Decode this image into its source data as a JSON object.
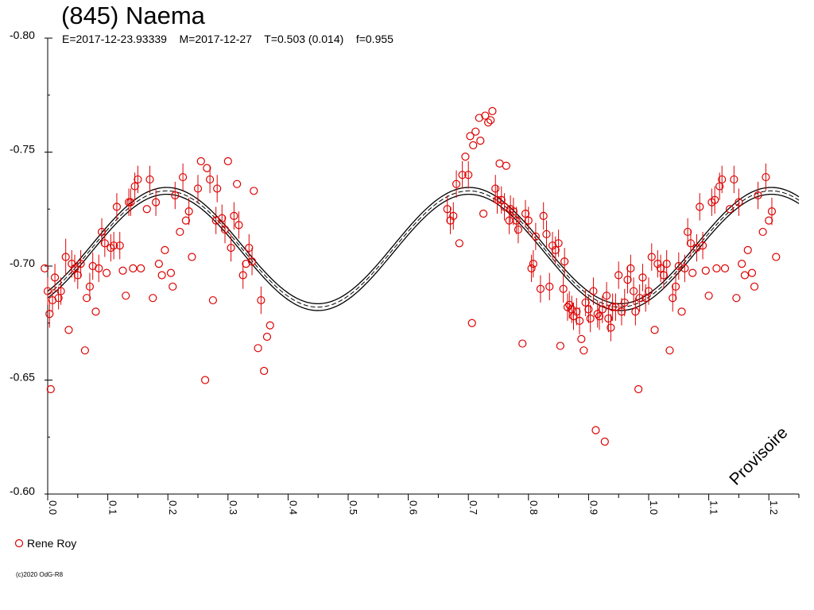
{
  "header": {
    "title": "(845) Naema",
    "params": "E=2017-12-23.93339    M=2017-12-27    T=0.503 (0.014)    f=0.955"
  },
  "footer": {
    "copyright": "(c)2020 OdG-R8"
  },
  "colors": {
    "data": "#dd0000",
    "fit": "#000000",
    "axis": "#000000"
  },
  "chart_data": {
    "type": "scatter",
    "title": "(845) Naema",
    "xlabel": "",
    "ylabel": "",
    "xlim": [
      0.0,
      1.25
    ],
    "ylim": [
      -0.8,
      -0.6
    ],
    "y_inverted": true,
    "x_ticks": [
      "0.0",
      "0.1",
      "0.2",
      "0.3",
      "0.4",
      "0.5",
      "0.6",
      "0.7",
      "0.8",
      "0.9",
      "1.0",
      "1.1",
      "1.2"
    ],
    "y_ticks": [
      "-0.80",
      "-0.75",
      "-0.70",
      "-0.65",
      "-0.60"
    ],
    "watermark": "Provisoire",
    "legend": {
      "position": "bottom-left",
      "entries": [
        {
          "name": "Rene Roy",
          "marker": "circle",
          "color": "#dd0000"
        }
      ]
    },
    "fit": {
      "period_phase": 0.503,
      "mean": -0.7075,
      "amplitude": 0.0255,
      "phase_offset": 0.198,
      "band": 0.0015
    },
    "series": [
      {
        "name": "Rene Roy",
        "points": [
          [
            -0.005,
            -0.699,
            0
          ],
          [
            0.0,
            -0.689,
            0.006
          ],
          [
            0.003,
            -0.679,
            0.006
          ],
          [
            0.005,
            -0.646,
            0
          ],
          [
            0.008,
            -0.685,
            0.005
          ],
          [
            0.012,
            -0.695,
            0.006
          ],
          [
            0.018,
            -0.686,
            0.005
          ],
          [
            0.022,
            -0.689,
            0.006
          ],
          [
            0.03,
            -0.704,
            0.008
          ],
          [
            0.035,
            -0.672,
            0
          ],
          [
            0.04,
            -0.701,
            0.006
          ],
          [
            0.045,
            -0.699,
            0.006
          ],
          [
            0.05,
            -0.696,
            0.006
          ],
          [
            0.055,
            -0.701,
            0.006
          ],
          [
            0.062,
            -0.663,
            0
          ],
          [
            0.065,
            -0.686,
            0
          ],
          [
            0.07,
            -0.691,
            0.006
          ],
          [
            0.075,
            -0.7,
            0.006
          ],
          [
            0.08,
            -0.68,
            0
          ],
          [
            0.085,
            -0.699,
            0.006
          ],
          [
            0.09,
            -0.715,
            0.006
          ],
          [
            0.095,
            -0.71,
            0.006
          ],
          [
            0.098,
            -0.697,
            0
          ],
          [
            0.105,
            -0.708,
            0.006
          ],
          [
            0.11,
            -0.709,
            0.006
          ],
          [
            0.115,
            -0.726,
            0.006
          ],
          [
            0.12,
            -0.709,
            0.006
          ],
          [
            0.125,
            -0.698,
            0
          ],
          [
            0.13,
            -0.687,
            0
          ],
          [
            0.135,
            -0.728,
            0.006
          ],
          [
            0.138,
            -0.728,
            0.006
          ],
          [
            0.142,
            -0.699,
            0
          ],
          [
            0.145,
            -0.735,
            0.006
          ],
          [
            0.15,
            -0.738,
            0.006
          ],
          [
            0.155,
            -0.699,
            0
          ],
          [
            0.165,
            -0.725,
            0
          ],
          [
            0.17,
            -0.738,
            0.006
          ],
          [
            0.175,
            -0.686,
            0
          ],
          [
            0.18,
            -0.728,
            0.006
          ],
          [
            0.185,
            -0.701,
            0
          ],
          [
            0.19,
            -0.696,
            0
          ],
          [
            0.195,
            -0.707,
            0
          ],
          [
            0.205,
            -0.697,
            0
          ],
          [
            0.208,
            -0.691,
            0
          ],
          [
            0.212,
            -0.731,
            0.006
          ],
          [
            0.22,
            -0.715,
            0
          ],
          [
            0.225,
            -0.739,
            0.006
          ],
          [
            0.23,
            -0.72,
            0
          ],
          [
            0.235,
            -0.724,
            0.006
          ],
          [
            0.24,
            -0.704,
            0
          ],
          [
            0.25,
            -0.734,
            0.006
          ],
          [
            0.255,
            -0.746,
            0
          ],
          [
            0.262,
            -0.65,
            0
          ],
          [
            0.265,
            -0.743,
            0
          ],
          [
            0.27,
            -0.738,
            0.006
          ],
          [
            0.275,
            -0.685,
            0
          ],
          [
            0.28,
            -0.72,
            0.006
          ],
          [
            0.282,
            -0.734,
            0.006
          ],
          [
            0.29,
            -0.721,
            0.006
          ],
          [
            0.295,
            -0.716,
            0.006
          ],
          [
            0.3,
            -0.746,
            0
          ],
          [
            0.305,
            -0.708,
            0.006
          ],
          [
            0.31,
            -0.722,
            0.006
          ],
          [
            0.315,
            -0.736,
            0
          ],
          [
            0.318,
            -0.718,
            0.006
          ],
          [
            0.325,
            -0.696,
            0.006
          ],
          [
            0.33,
            -0.701,
            0
          ],
          [
            0.335,
            -0.708,
            0.006
          ],
          [
            0.34,
            -0.702,
            0.006
          ],
          [
            0.343,
            -0.733,
            0
          ],
          [
            0.35,
            -0.664,
            0
          ],
          [
            0.355,
            -0.685,
            0.006
          ],
          [
            0.36,
            -0.654,
            0
          ],
          [
            0.365,
            -0.669,
            0
          ],
          [
            0.37,
            -0.674,
            0
          ],
          [
            0.665,
            -0.725,
            0.006
          ],
          [
            0.67,
            -0.72,
            0.006
          ],
          [
            0.675,
            -0.722,
            0.006
          ],
          [
            0.68,
            -0.736,
            0.006
          ],
          [
            0.685,
            -0.71,
            0
          ],
          [
            0.69,
            -0.74,
            0.006
          ],
          [
            0.695,
            -0.748,
            0
          ],
          [
            0.7,
            -0.74,
            0.006
          ],
          [
            0.703,
            -0.757,
            0
          ],
          [
            0.706,
            -0.675,
            0
          ],
          [
            0.708,
            -0.753,
            0
          ],
          [
            0.712,
            -0.759,
            0
          ],
          [
            0.718,
            -0.765,
            0
          ],
          [
            0.72,
            -0.755,
            0
          ],
          [
            0.725,
            -0.723,
            0
          ],
          [
            0.728,
            -0.766,
            0
          ],
          [
            0.733,
            -0.763,
            0
          ],
          [
            0.737,
            -0.764,
            0
          ],
          [
            0.74,
            -0.768,
            0
          ],
          [
            0.745,
            -0.734,
            0.006
          ],
          [
            0.748,
            -0.729,
            0.006
          ],
          [
            0.752,
            -0.745,
            0
          ],
          [
            0.755,
            -0.729,
            0.006
          ],
          [
            0.76,
            -0.726,
            0.006
          ],
          [
            0.763,
            -0.744,
            0
          ],
          [
            0.768,
            -0.72,
            0.006
          ],
          [
            0.77,
            -0.725,
            0.006
          ],
          [
            0.775,
            -0.724,
            0.006
          ],
          [
            0.78,
            -0.72,
            0.006
          ],
          [
            0.783,
            -0.716,
            0.006
          ],
          [
            0.79,
            -0.666,
            0
          ],
          [
            0.795,
            -0.723,
            0.006
          ],
          [
            0.8,
            -0.72,
            0.006
          ],
          [
            0.805,
            -0.699,
            0.006
          ],
          [
            0.808,
            -0.701,
            0.006
          ],
          [
            0.812,
            -0.713,
            0.006
          ],
          [
            0.82,
            -0.69,
            0.006
          ],
          [
            0.825,
            -0.722,
            0.006
          ],
          [
            0.83,
            -0.714,
            0.006
          ],
          [
            0.835,
            -0.691,
            0.006
          ],
          [
            0.84,
            -0.709,
            0.006
          ],
          [
            0.845,
            -0.707,
            0.006
          ],
          [
            0.85,
            -0.71,
            0.006
          ],
          [
            0.853,
            -0.665,
            0
          ],
          [
            0.858,
            -0.69,
            0.006
          ],
          [
            0.86,
            -0.702,
            0.006
          ],
          [
            0.865,
            -0.682,
            0.006
          ],
          [
            0.868,
            -0.683,
            0.006
          ],
          [
            0.872,
            -0.681,
            0.006
          ],
          [
            0.875,
            -0.678,
            0.006
          ],
          [
            0.88,
            -0.68,
            0.006
          ],
          [
            0.885,
            -0.676,
            0.006
          ],
          [
            0.888,
            -0.668,
            0
          ],
          [
            0.892,
            -0.663,
            0
          ],
          [
            0.895,
            -0.684,
            0.006
          ],
          [
            0.9,
            -0.681,
            0.006
          ],
          [
            0.903,
            -0.677,
            0.006
          ],
          [
            0.908,
            -0.689,
            0.006
          ],
          [
            0.912,
            -0.628,
            0
          ],
          [
            0.915,
            -0.679,
            0.006
          ],
          [
            0.918,
            -0.678,
            0.006
          ],
          [
            0.923,
            -0.681,
            0.006
          ],
          [
            0.927,
            -0.623,
            0
          ],
          [
            0.93,
            -0.687,
            0.006
          ],
          [
            0.933,
            -0.677,
            0.006
          ],
          [
            0.937,
            -0.673,
            0.006
          ],
          [
            0.94,
            -0.682,
            0.006
          ],
          [
            0.945,
            -0.682,
            0.006
          ],
          [
            0.95,
            -0.696,
            0.006
          ],
          [
            0.955,
            -0.68,
            0.006
          ],
          [
            0.96,
            -0.684,
            0.006
          ],
          [
            0.965,
            -0.694,
            0.006
          ],
          [
            0.97,
            -0.699,
            0.006
          ],
          [
            0.975,
            -0.689,
            0.006
          ],
          [
            0.978,
            -0.68,
            0.006
          ],
          [
            0.983,
            -0.646,
            0
          ],
          [
            0.985,
            -0.686,
            0.006
          ],
          [
            0.99,
            -0.695,
            0.006
          ],
          [
            0.995,
            -0.686,
            0.006
          ],
          [
            1.0,
            -0.689,
            0.006
          ],
          [
            1.005,
            -0.704,
            0.006
          ],
          [
            1.01,
            -0.672,
            0
          ],
          [
            1.015,
            -0.701,
            0.006
          ],
          [
            1.02,
            -0.699,
            0.006
          ],
          [
            1.025,
            -0.696,
            0.006
          ],
          [
            1.03,
            -0.701,
            0.006
          ],
          [
            1.035,
            -0.663,
            0
          ],
          [
            1.04,
            -0.686,
            0.006
          ],
          [
            1.045,
            -0.691,
            0.006
          ],
          [
            1.05,
            -0.7,
            0.006
          ],
          [
            1.055,
            -0.68,
            0
          ],
          [
            1.06,
            -0.699,
            0.006
          ],
          [
            1.065,
            -0.715,
            0.006
          ],
          [
            1.07,
            -0.71,
            0.006
          ],
          [
            1.073,
            -0.697,
            0
          ],
          [
            1.08,
            -0.708,
            0.006
          ],
          [
            1.085,
            -0.726,
            0.006
          ],
          [
            1.09,
            -0.709,
            0.006
          ],
          [
            1.095,
            -0.698,
            0
          ],
          [
            1.1,
            -0.687,
            0
          ],
          [
            1.105,
            -0.728,
            0.006
          ],
          [
            1.11,
            -0.729,
            0.006
          ],
          [
            1.113,
            -0.699,
            0
          ],
          [
            1.118,
            -0.735,
            0.006
          ],
          [
            1.122,
            -0.738,
            0.006
          ],
          [
            1.127,
            -0.699,
            0
          ],
          [
            1.135,
            -0.725,
            0
          ],
          [
            1.142,
            -0.738,
            0.006
          ],
          [
            1.146,
            -0.686,
            0
          ],
          [
            1.15,
            -0.728,
            0.006
          ],
          [
            1.155,
            -0.701,
            0
          ],
          [
            1.16,
            -0.696,
            0
          ],
          [
            1.165,
            -0.707,
            0
          ],
          [
            1.172,
            -0.697,
            0
          ],
          [
            1.176,
            -0.691,
            0
          ],
          [
            1.182,
            -0.731,
            0.006
          ],
          [
            1.19,
            -0.715,
            0
          ],
          [
            1.195,
            -0.739,
            0.006
          ],
          [
            1.2,
            -0.72,
            0
          ],
          [
            1.205,
            -0.724,
            0.006
          ],
          [
            1.212,
            -0.704,
            0
          ]
        ]
      }
    ]
  }
}
